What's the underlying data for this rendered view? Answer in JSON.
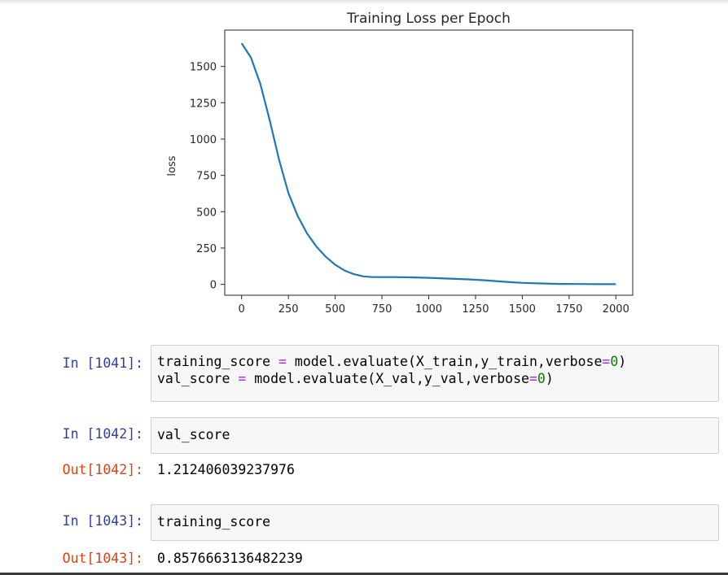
{
  "chart_data": {
    "type": "line",
    "title": "Training Loss per Epoch",
    "xlabel": "",
    "ylabel": "loss",
    "xlim": [
      -90,
      2090
    ],
    "ylim": [
      -75,
      1750
    ],
    "xticks": [
      0,
      250,
      500,
      750,
      1000,
      1250,
      1500,
      1750,
      2000
    ],
    "yticks": [
      0,
      250,
      500,
      750,
      1000,
      1250,
      1500
    ],
    "grid": false,
    "series_color": "#1f77b4",
    "x": [
      0,
      50,
      100,
      150,
      200,
      250,
      300,
      350,
      400,
      450,
      500,
      550,
      600,
      650,
      700,
      750,
      800,
      900,
      1000,
      1100,
      1200,
      1300,
      1400,
      1500,
      1600,
      1700,
      1800,
      1900,
      2000
    ],
    "y": [
      1660,
      1560,
      1380,
      1130,
      860,
      630,
      470,
      350,
      260,
      190,
      135,
      95,
      70,
      55,
      50,
      50,
      50,
      48,
      45,
      40,
      35,
      28,
      18,
      10,
      6,
      3,
      2,
      1,
      1
    ]
  },
  "cells": [
    {
      "prompt": "In [1041]:",
      "lines": [
        [
          {
            "t": "training_score ",
            "c": "plain"
          },
          {
            "t": "=",
            "c": "op"
          },
          {
            "t": " model.evaluate(X_train,y_train,verbose",
            "c": "plain"
          },
          {
            "t": "=",
            "c": "op"
          },
          {
            "t": "0",
            "c": "num"
          },
          {
            "t": ")",
            "c": "plain"
          }
        ],
        [
          {
            "t": "val_score ",
            "c": "plain"
          },
          {
            "t": "=",
            "c": "op"
          },
          {
            "t": " model.evaluate(X_val,y_val,verbose",
            "c": "plain"
          },
          {
            "t": "=",
            "c": "op"
          },
          {
            "t": "0",
            "c": "num"
          },
          {
            "t": ")",
            "c": "plain"
          }
        ]
      ]
    },
    {
      "prompt": "In [1042]:",
      "lines": [
        [
          {
            "t": "val_score",
            "c": "plain"
          }
        ]
      ],
      "out_prompt": "Out[1042]:",
      "output": "1.212406039237976"
    },
    {
      "prompt": "In [1043]:",
      "lines": [
        [
          {
            "t": "training_score",
            "c": "plain"
          }
        ]
      ],
      "out_prompt": "Out[1043]:",
      "output": "0.8576663136482239"
    }
  ]
}
